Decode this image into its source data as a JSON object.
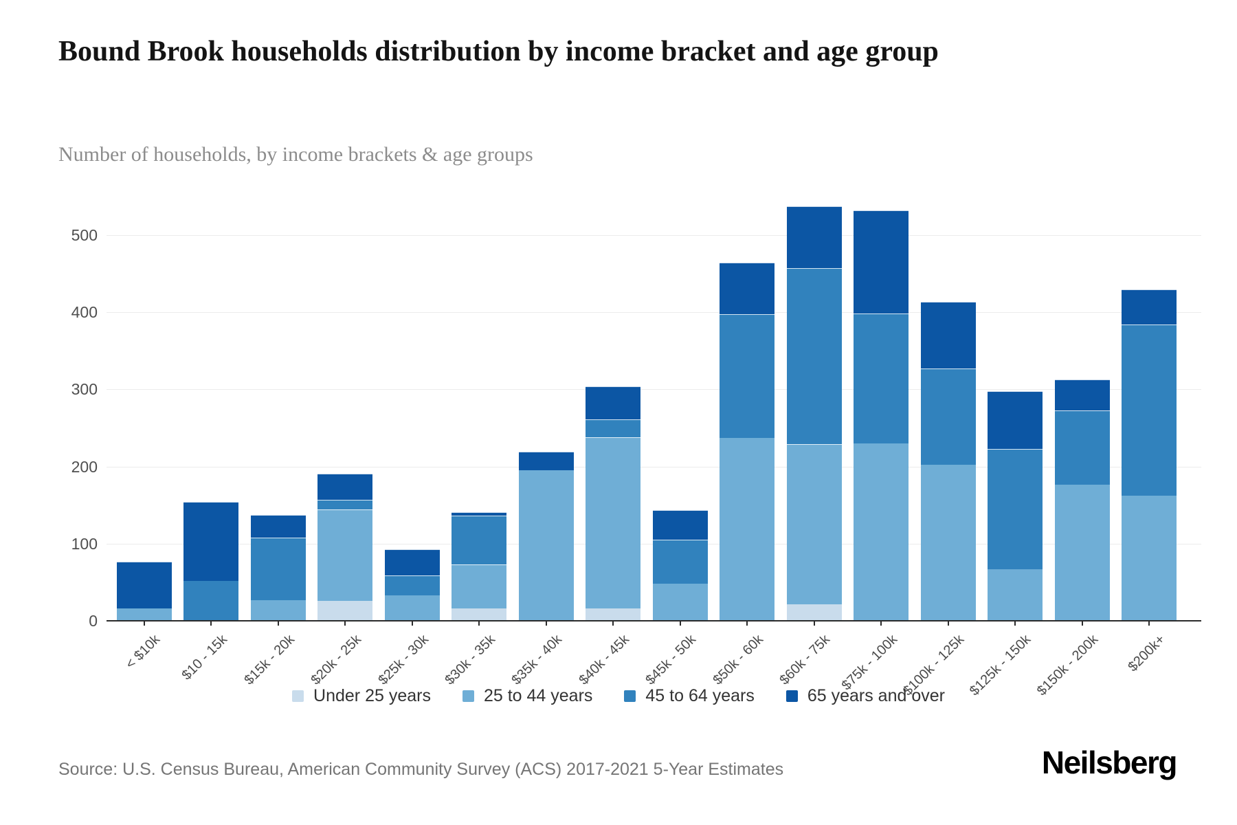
{
  "header": {
    "title": "Bound Brook households distribution by income bracket and age group",
    "subtitle": "Number of households, by income brackets & age groups"
  },
  "chart_data": {
    "type": "bar",
    "stacked": true,
    "title": "Bound Brook households distribution by income bracket and age group",
    "xlabel": "",
    "ylabel": "Number of households",
    "grid": true,
    "legend_position": "bottom",
    "ylim": [
      0,
      548
    ],
    "yticks": [
      0,
      100,
      200,
      300,
      400,
      500
    ],
    "categories": [
      "< $10k",
      "$10 - 15k",
      "$15k - 20k",
      "$20k - 25k",
      "$25k - 30k",
      "$30k - 35k",
      "$35k - 40k",
      "$40k - 45k",
      "$45k - 50k",
      "$50k - 60k",
      "$60k - 75k",
      "$75k - 100k",
      "$100k - 125k",
      "$125k - 150k",
      "$150k - 200k",
      "$200k+"
    ],
    "series": [
      {
        "name": "Under 25 years",
        "color": "#c9dcec",
        "values": [
          0,
          0,
          0,
          26,
          0,
          16,
          0,
          16,
          0,
          0,
          21,
          0,
          0,
          0,
          0,
          0
        ]
      },
      {
        "name": "25 to 44 years",
        "color": "#6faed6",
        "values": [
          16,
          0,
          27,
          118,
          33,
          57,
          195,
          222,
          48,
          237,
          208,
          230,
          202,
          67,
          176,
          162
        ]
      },
      {
        "name": "45 to 64 years",
        "color": "#3182bd",
        "values": [
          0,
          52,
          81,
          13,
          26,
          63,
          0,
          23,
          57,
          160,
          228,
          168,
          125,
          156,
          97,
          222
        ]
      },
      {
        "name": "65 years and over",
        "color": "#0c56a4",
        "values": [
          61,
          102,
          29,
          34,
          34,
          5,
          24,
          43,
          38,
          67,
          80,
          134,
          86,
          75,
          40,
          45
        ]
      }
    ],
    "totals": [
      77,
      154,
      137,
      191,
      93,
      141,
      219,
      304,
      143,
      464,
      537,
      532,
      413,
      298,
      313,
      429
    ]
  },
  "footer": {
    "source": "Source: U.S. Census Bureau, American Community Survey (ACS) 2017-2021 5-Year Estimates",
    "logo": "Neilsberg"
  }
}
